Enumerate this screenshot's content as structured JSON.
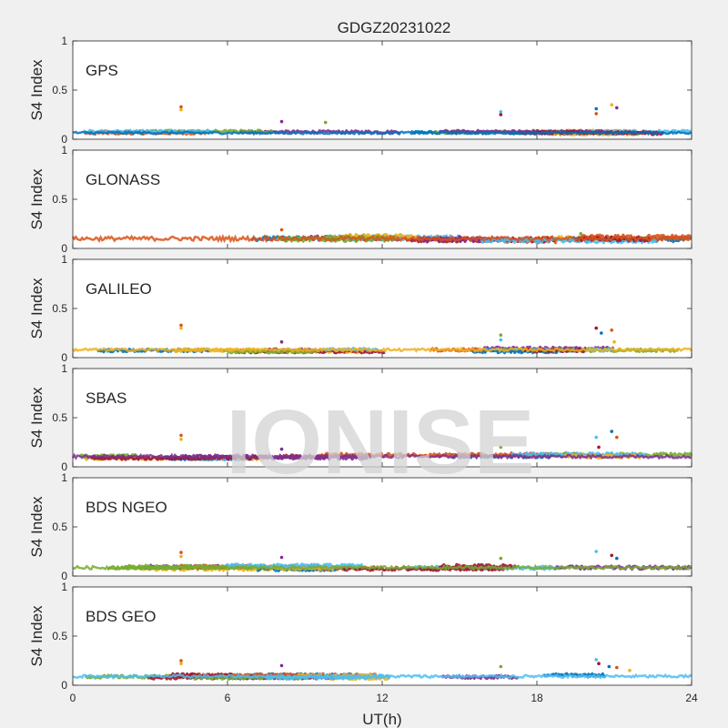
{
  "figure": {
    "title": "GDGZ20231022",
    "xlabel": "UT(h)",
    "watermark": "IONISE",
    "background": "#f0f0f0",
    "axes_background": "#ffffff"
  },
  "chart_data": [
    {
      "type": "scatter",
      "panel_label": "GPS",
      "ylabel": "S4 Index",
      "xlim": [
        0,
        24
      ],
      "ylim": [
        0,
        1
      ],
      "yticks": [
        0,
        0.5,
        1
      ],
      "ytick_labels": [
        "0",
        "0.5",
        "1"
      ],
      "baseline": [
        0.03,
        0.1
      ],
      "spikes": [
        [
          4.2,
          0.33
        ],
        [
          4.2,
          0.3
        ],
        [
          8.1,
          0.18
        ],
        [
          9.8,
          0.17
        ],
        [
          16.6,
          0.28
        ],
        [
          16.6,
          0.25
        ],
        [
          20.3,
          0.31
        ],
        [
          20.3,
          0.26
        ],
        [
          20.9,
          0.35
        ],
        [
          21.1,
          0.32
        ]
      ],
      "grid": false,
      "legend": "none"
    },
    {
      "type": "scatter",
      "panel_label": "GLONASS",
      "ylabel": "S4 Index",
      "xlim": [
        0,
        24
      ],
      "ylim": [
        0,
        1
      ],
      "yticks": [
        0,
        0.5,
        1
      ],
      "ytick_labels": [
        "0",
        "0.5",
        "1"
      ],
      "baseline": [
        0.04,
        0.16
      ],
      "spikes": [
        [
          8.1,
          0.19
        ],
        [
          11.0,
          0.13
        ],
        [
          15.0,
          0.12
        ],
        [
          19.7,
          0.15
        ]
      ],
      "grid": false,
      "legend": "none"
    },
    {
      "type": "scatter",
      "panel_label": "GALILEO",
      "ylabel": "S4 Index",
      "xlim": [
        0,
        24
      ],
      "ylim": [
        0,
        1
      ],
      "yticks": [
        0,
        0.5,
        1
      ],
      "ytick_labels": [
        "0",
        "0.5",
        "1"
      ],
      "baseline": [
        0.04,
        0.12
      ],
      "spikes": [
        [
          4.2,
          0.33
        ],
        [
          4.2,
          0.3
        ],
        [
          8.1,
          0.16
        ],
        [
          16.6,
          0.23
        ],
        [
          16.6,
          0.18
        ],
        [
          20.3,
          0.3
        ],
        [
          20.5,
          0.25
        ],
        [
          20.9,
          0.28
        ],
        [
          21.0,
          0.16
        ]
      ],
      "grid": false,
      "legend": "none"
    },
    {
      "type": "scatter",
      "panel_label": "SBAS",
      "ylabel": "S4 Index",
      "xlim": [
        0,
        24
      ],
      "ylim": [
        0,
        1
      ],
      "yticks": [
        0,
        0.5,
        1
      ],
      "ytick_labels": [
        "0",
        "0.5",
        "1"
      ],
      "baseline": [
        0.06,
        0.15
      ],
      "spikes": [
        [
          4.2,
          0.32
        ],
        [
          4.2,
          0.28
        ],
        [
          8.1,
          0.18
        ],
        [
          16.6,
          0.2
        ],
        [
          20.3,
          0.3
        ],
        [
          20.4,
          0.2
        ],
        [
          20.9,
          0.36
        ],
        [
          21.1,
          0.3
        ]
      ],
      "grid": false,
      "legend": "none"
    },
    {
      "type": "scatter",
      "panel_label": "BDS NGEO",
      "ylabel": "S4 Index",
      "xlim": [
        0,
        24
      ],
      "ylim": [
        0,
        1
      ],
      "yticks": [
        0,
        0.5,
        1
      ],
      "ytick_labels": [
        "0",
        "0.5",
        "1"
      ],
      "baseline": [
        0.04,
        0.13
      ],
      "spikes": [
        [
          4.2,
          0.24
        ],
        [
          4.2,
          0.2
        ],
        [
          8.1,
          0.19
        ],
        [
          16.6,
          0.18
        ],
        [
          20.3,
          0.25
        ],
        [
          20.9,
          0.21
        ],
        [
          21.1,
          0.18
        ]
      ],
      "grid": false,
      "legend": "none"
    },
    {
      "type": "scatter",
      "panel_label": "BDS GEO",
      "ylabel": "S4 Index",
      "xlim": [
        0,
        24
      ],
      "ylim": [
        0,
        1
      ],
      "yticks": [
        0,
        0.5,
        1
      ],
      "ytick_labels": [
        "0",
        "0.5",
        "1"
      ],
      "xticks": [
        0,
        6,
        12,
        18,
        24
      ],
      "xtick_labels": [
        "0",
        "6",
        "12",
        "18",
        "24"
      ],
      "baseline": [
        0.05,
        0.13
      ],
      "spikes": [
        [
          4.2,
          0.25
        ],
        [
          4.2,
          0.22
        ],
        [
          8.1,
          0.2
        ],
        [
          16.6,
          0.19
        ],
        [
          20.3,
          0.26
        ],
        [
          20.4,
          0.22
        ],
        [
          20.8,
          0.19
        ],
        [
          21.1,
          0.18
        ],
        [
          21.6,
          0.15
        ]
      ],
      "grid": false,
      "legend": "none"
    }
  ],
  "series_colors": [
    "#0072BD",
    "#D95319",
    "#EDB120",
    "#7E2F8E",
    "#77AC30",
    "#4DBEEE",
    "#A2142F"
  ]
}
